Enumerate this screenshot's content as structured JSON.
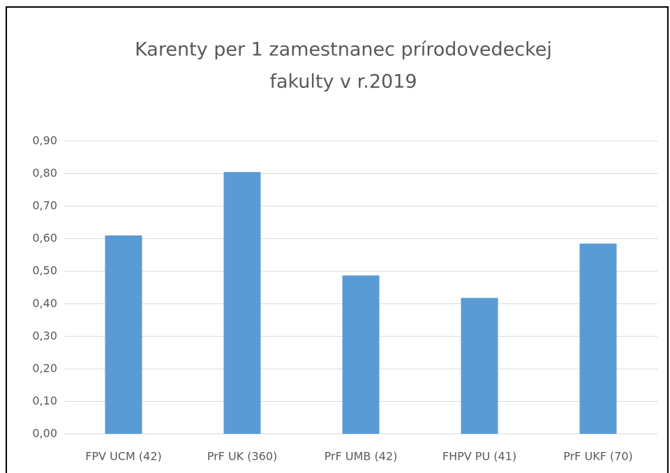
{
  "chart_data": {
    "type": "bar",
    "title": [
      "Karenty per 1 zamestnanec prírodovedeckej",
      "fakulty v r.2019"
    ],
    "categories": [
      "FPV UCM (42)",
      "PrF UK (360)",
      "PrF UMB (42)",
      "FHPV PU (41)",
      "PrF UKF (70)"
    ],
    "values": [
      0.61,
      0.805,
      0.487,
      0.418,
      0.585
    ],
    "color": "#5b9bd5",
    "ylim": [
      0,
      0.9
    ],
    "yticks": [
      {
        "value": 0,
        "label": "0,00"
      },
      {
        "value": 0.1,
        "label": "0,10"
      },
      {
        "value": 0.2,
        "label": "0,20"
      },
      {
        "value": 0.3,
        "label": "0,30"
      },
      {
        "value": 0.4,
        "label": "0,40"
      },
      {
        "value": 0.5,
        "label": "0,50"
      },
      {
        "value": 0.6,
        "label": "0,60"
      },
      {
        "value": 0.7,
        "label": "0,70"
      },
      {
        "value": 0.8,
        "label": "0,80"
      },
      {
        "value": 0.9,
        "label": "0,90"
      }
    ],
    "grid": true
  }
}
